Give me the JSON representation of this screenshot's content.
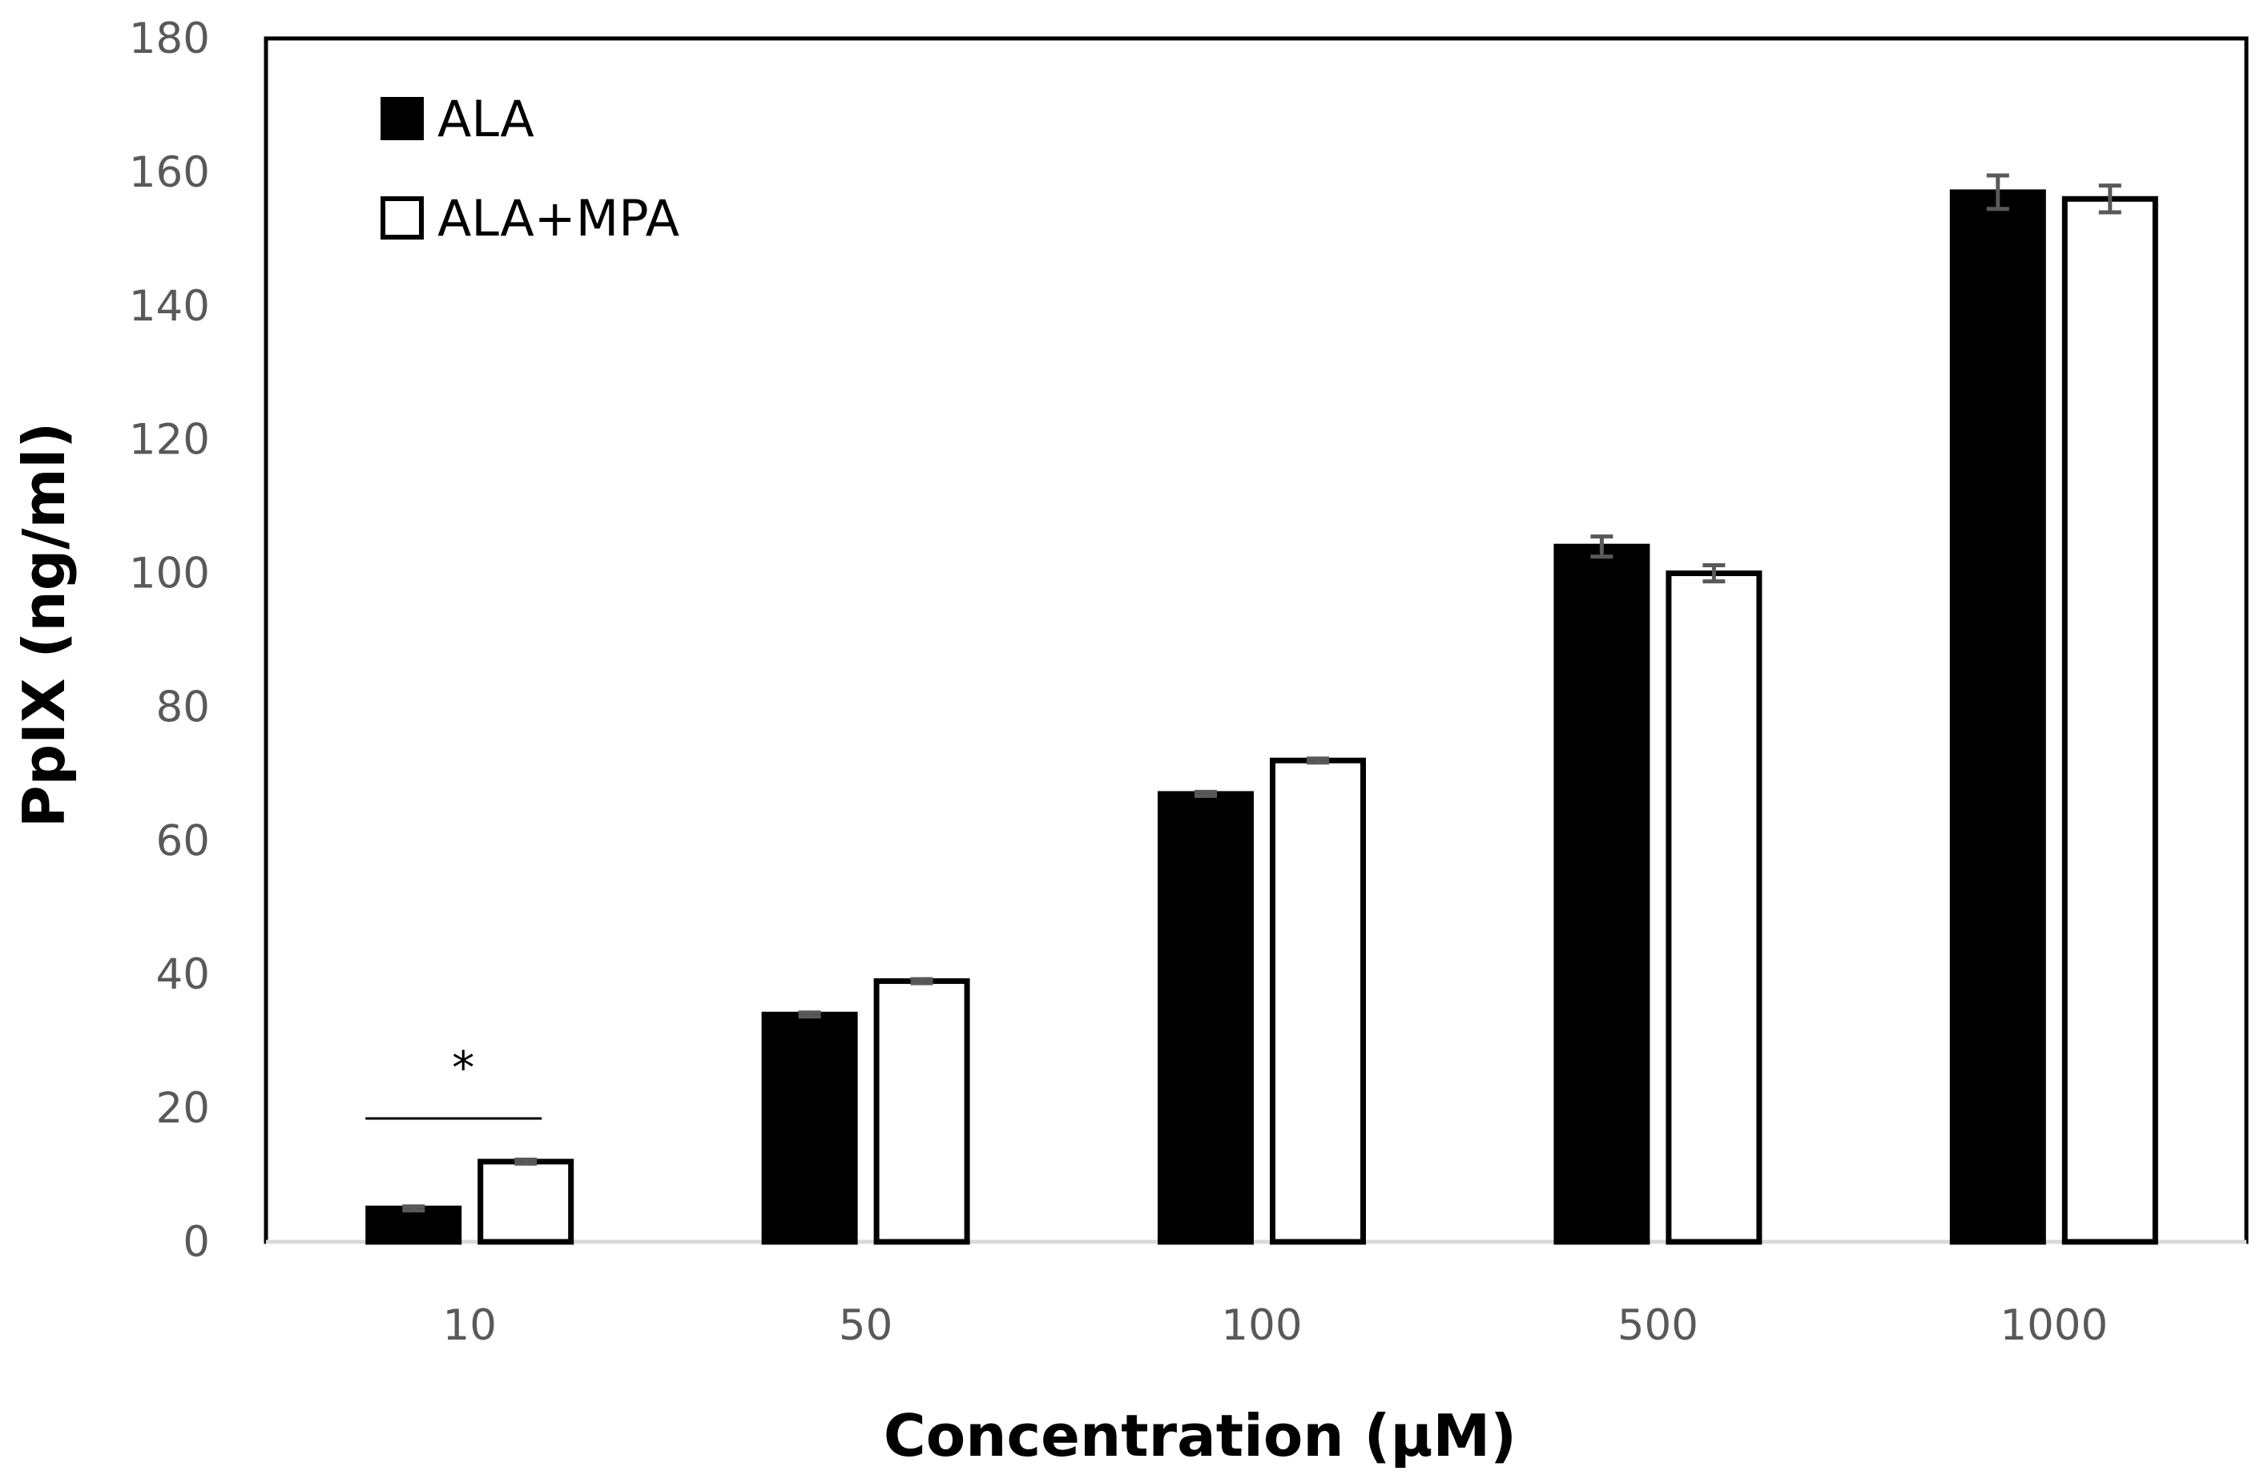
{
  "chart_data": {
    "type": "bar",
    "title": "",
    "xlabel": "Concentration (µM)",
    "ylabel": "PpIX (ng/ml)",
    "ylim": [
      0,
      180
    ],
    "yticks": [
      "0",
      "20",
      "40",
      "60",
      "80",
      "100",
      "120",
      "140",
      "160",
      "180"
    ],
    "categories": [
      "10",
      "50",
      "100",
      "500",
      "1000"
    ],
    "series": [
      {
        "name": "ALA",
        "fill": "#000000",
        "values": [
          5,
          34,
          67,
          104,
          157
        ],
        "errors": [
          0.3,
          0.3,
          0.3,
          1.5,
          2.5
        ]
      },
      {
        "name": "ALA+MPA",
        "fill": "#ffffff",
        "values": [
          12,
          39,
          72,
          100,
          156
        ],
        "errors": [
          0.3,
          0.3,
          0.3,
          1.2,
          2.0
        ]
      }
    ],
    "legend": {
      "position": "top-left",
      "entries": [
        "ALA",
        "ALA+MPA"
      ]
    },
    "annotations": [
      {
        "text": "*",
        "category": "10",
        "kind": "significance"
      }
    ],
    "grid": false,
    "colors": {
      "axis": "#000000",
      "gridline": "#d9d9d9",
      "tick_text": "#595959",
      "error_bar": "#595959"
    }
  }
}
